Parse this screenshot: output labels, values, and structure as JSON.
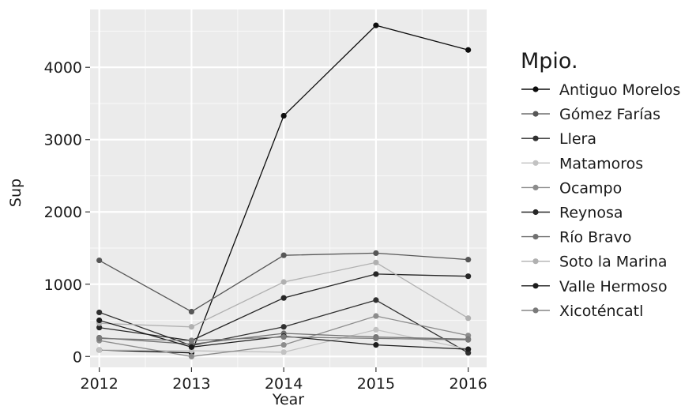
{
  "chart_data": {
    "type": "line",
    "xlabel": "Year",
    "ylabel": "Sup",
    "x": [
      2012,
      2013,
      2014,
      2015,
      2016
    ],
    "xlim": [
      2011.9,
      2016.2
    ],
    "ylim": [
      -150,
      4800
    ],
    "y_ticks": [
      0,
      1000,
      2000,
      3000,
      4000
    ],
    "x_ticks": [
      2012,
      2013,
      2014,
      2015,
      2016
    ],
    "grid": true,
    "legend_title": "Mpio.",
    "legend_position": "right",
    "series": [
      {
        "name": "Antiguo Morelos",
        "color": "#0d0d0d",
        "values": [
          90,
          50,
          3330,
          4580,
          4240
        ]
      },
      {
        "name": "Gómez Farías",
        "color": "#575757",
        "values": [
          1330,
          620,
          1400,
          1430,
          1340
        ]
      },
      {
        "name": "Llera",
        "color": "#303030",
        "values": [
          610,
          150,
          410,
          780,
          50
        ]
      },
      {
        "name": "Matamoros",
        "color": "#c2c2c2",
        "values": [
          90,
          80,
          60,
          370,
          100
        ]
      },
      {
        "name": "Ocampo",
        "color": "#8c8c8c",
        "values": [
          220,
          0,
          160,
          560,
          290
        ]
      },
      {
        "name": "Reynosa",
        "color": "#262626",
        "values": [
          400,
          220,
          810,
          1140,
          1110
        ]
      },
      {
        "name": "Río Bravo",
        "color": "#707070",
        "values": [
          260,
          170,
          320,
          270,
          240
        ]
      },
      {
        "name": "Soto la Marina",
        "color": "#b0b0b0",
        "values": [
          460,
          410,
          1030,
          1300,
          530
        ]
      },
      {
        "name": "Valle Hermoso",
        "color": "#1c1c1c",
        "values": [
          500,
          130,
          280,
          160,
          100
        ]
      },
      {
        "name": "Xicoténcatl",
        "color": "#7a7a7a",
        "values": [
          250,
          220,
          270,
          250,
          230
        ]
      }
    ]
  }
}
